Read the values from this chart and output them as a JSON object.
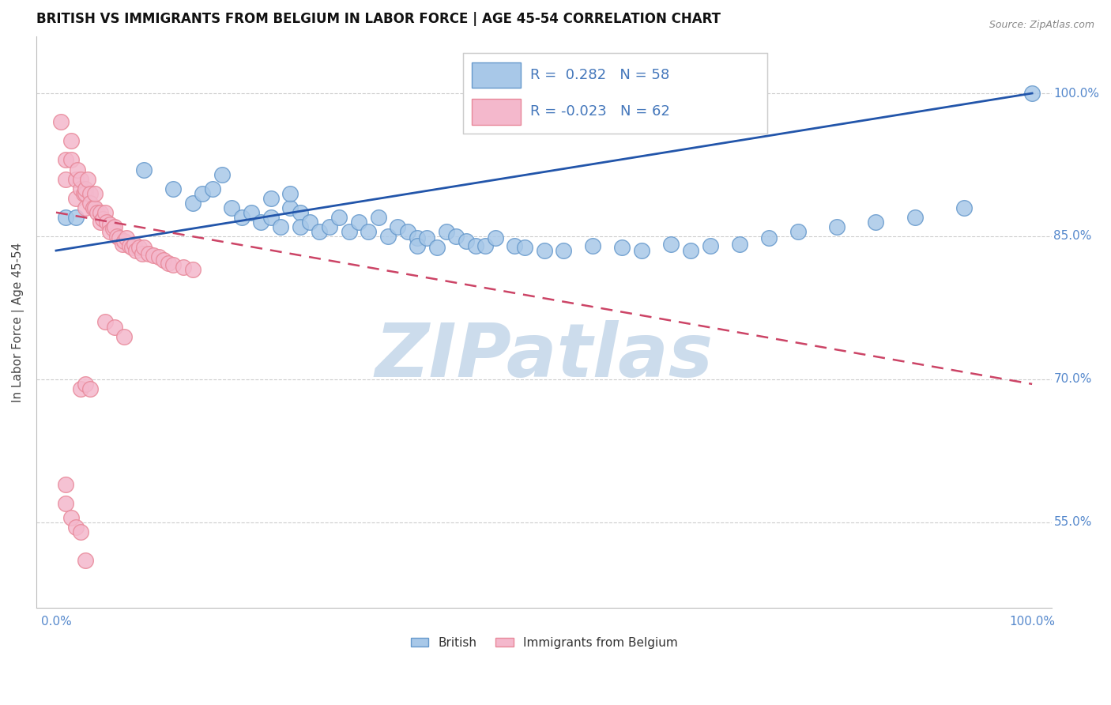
{
  "title": "BRITISH VS IMMIGRANTS FROM BELGIUM IN LABOR FORCE | AGE 45-54 CORRELATION CHART",
  "source_text": "Source: ZipAtlas.com",
  "ylabel": "In Labor Force | Age 45-54",
  "watermark": "ZIPatlas",
  "xlim": [
    -0.02,
    1.02
  ],
  "ylim": [
    0.46,
    1.06
  ],
  "ytick_positions": [
    0.55,
    0.7,
    0.85,
    1.0
  ],
  "ytick_labels": [
    "55.0%",
    "70.0%",
    "85.0%",
    "100.0%"
  ],
  "xtick_positions": [
    0.0,
    1.0
  ],
  "xtick_labels": [
    "0.0%",
    "100.0%"
  ],
  "british_color": "#a8c8e8",
  "belgium_color": "#f4b8cc",
  "british_edge_color": "#6699cc",
  "belgium_edge_color": "#e88899",
  "trend_blue_color": "#2255aa",
  "trend_pink_color": "#cc4466",
  "legend_R_british": "0.282",
  "legend_N_british": "58",
  "legend_R_belgium": "-0.023",
  "legend_N_belgium": "62",
  "legend_label_british": "British",
  "legend_label_belgium": "Immigrants from Belgium",
  "british_x": [
    0.01,
    0.02,
    0.09,
    0.12,
    0.14,
    0.15,
    0.16,
    0.17,
    0.18,
    0.19,
    0.2,
    0.21,
    0.22,
    0.22,
    0.23,
    0.24,
    0.24,
    0.25,
    0.25,
    0.26,
    0.27,
    0.28,
    0.29,
    0.3,
    0.31,
    0.32,
    0.33,
    0.34,
    0.35,
    0.36,
    0.37,
    0.37,
    0.38,
    0.39,
    0.4,
    0.41,
    0.42,
    0.43,
    0.44,
    0.45,
    0.47,
    0.48,
    0.5,
    0.52,
    0.55,
    0.58,
    0.6,
    0.63,
    0.65,
    0.67,
    0.7,
    0.73,
    0.76,
    0.8,
    0.84,
    0.88,
    0.93,
    1.0
  ],
  "british_y": [
    0.87,
    0.87,
    0.92,
    0.9,
    0.885,
    0.895,
    0.9,
    0.915,
    0.88,
    0.87,
    0.875,
    0.865,
    0.89,
    0.87,
    0.86,
    0.88,
    0.895,
    0.875,
    0.86,
    0.865,
    0.855,
    0.86,
    0.87,
    0.855,
    0.865,
    0.855,
    0.87,
    0.85,
    0.86,
    0.855,
    0.848,
    0.84,
    0.848,
    0.838,
    0.855,
    0.85,
    0.845,
    0.84,
    0.84,
    0.848,
    0.84,
    0.838,
    0.835,
    0.835,
    0.84,
    0.838,
    0.835,
    0.842,
    0.835,
    0.84,
    0.842,
    0.848,
    0.855,
    0.86,
    0.865,
    0.87,
    0.88,
    1.0
  ],
  "belgium_x": [
    0.005,
    0.01,
    0.01,
    0.015,
    0.015,
    0.02,
    0.02,
    0.022,
    0.025,
    0.025,
    0.028,
    0.03,
    0.03,
    0.03,
    0.032,
    0.035,
    0.035,
    0.038,
    0.04,
    0.04,
    0.042,
    0.045,
    0.045,
    0.048,
    0.05,
    0.052,
    0.055,
    0.055,
    0.058,
    0.06,
    0.062,
    0.065,
    0.068,
    0.07,
    0.072,
    0.075,
    0.078,
    0.08,
    0.082,
    0.085,
    0.088,
    0.09,
    0.095,
    0.1,
    0.105,
    0.11,
    0.115,
    0.12,
    0.13,
    0.14,
    0.05,
    0.06,
    0.07,
    0.025,
    0.03,
    0.035,
    0.01,
    0.01,
    0.015,
    0.02,
    0.025,
    0.03
  ],
  "belgium_y": [
    0.97,
    0.93,
    0.91,
    0.93,
    0.95,
    0.91,
    0.89,
    0.92,
    0.9,
    0.91,
    0.895,
    0.895,
    0.88,
    0.9,
    0.91,
    0.895,
    0.885,
    0.88,
    0.88,
    0.895,
    0.875,
    0.875,
    0.865,
    0.868,
    0.875,
    0.865,
    0.862,
    0.855,
    0.858,
    0.86,
    0.85,
    0.848,
    0.842,
    0.845,
    0.848,
    0.84,
    0.838,
    0.842,
    0.835,
    0.838,
    0.832,
    0.838,
    0.832,
    0.83,
    0.828,
    0.825,
    0.822,
    0.82,
    0.818,
    0.815,
    0.76,
    0.755,
    0.745,
    0.69,
    0.695,
    0.69,
    0.59,
    0.57,
    0.555,
    0.545,
    0.54,
    0.51
  ],
  "background_color": "#ffffff",
  "grid_color": "#cccccc",
  "title_fontsize": 12,
  "axis_label_fontsize": 11,
  "tick_fontsize": 11,
  "watermark_color": "#ccdcec",
  "watermark_fontsize": 68,
  "marker_size": 200
}
